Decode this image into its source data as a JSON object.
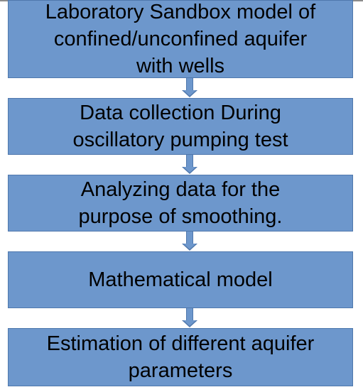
{
  "flowchart": {
    "steps": [
      {
        "lines": [
          "Laboratory Sandbox model of",
          "confined/unconfined aquifer",
          "with wells"
        ]
      },
      {
        "lines": [
          "Data collection During",
          "oscillatory pumping test"
        ]
      },
      {
        "lines": [
          "Analyzing data for the",
          "purpose of smoothing."
        ]
      },
      {
        "lines": [
          "Mathematical model"
        ]
      },
      {
        "lines": [
          "Estimation of different aquifer",
          "parameters"
        ]
      }
    ]
  },
  "colors": {
    "box_fill": "#6d97cc",
    "box_border": "#4f78ad",
    "text": "#000000"
  }
}
